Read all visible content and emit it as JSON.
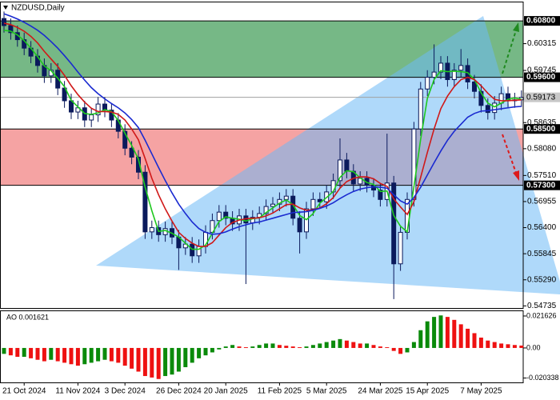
{
  "chart_data": [
    {
      "type": "candlestick",
      "title": "NZDUSD,Daily",
      "categories": [
        null,
        null,
        null,
        "21 Oct 2024",
        null,
        null,
        null,
        null,
        null,
        null,
        null,
        "11 Nov 2024",
        null,
        null,
        null,
        null,
        null,
        null,
        "3 Dec 2024",
        null,
        null,
        null,
        null,
        null,
        null,
        null,
        "26 Dec 2024",
        null,
        null,
        null,
        null,
        null,
        null,
        "20 Jan 2025",
        null,
        null,
        null,
        null,
        null,
        null,
        null,
        "11 Feb 2025",
        null,
        null,
        null,
        null,
        null,
        null,
        "5 Mar 2025",
        null,
        null,
        null,
        null,
        null,
        null,
        null,
        "24 Mar 2025",
        null,
        null,
        null,
        null,
        null,
        null,
        "15 Apr 2025",
        null,
        null,
        null,
        null,
        null,
        null,
        null,
        "7 May 2025",
        null,
        null,
        null,
        null,
        null,
        null
      ],
      "open": [
        0.6085,
        0.607,
        0.6055,
        0.604,
        0.6022,
        0.6005,
        0.5985,
        0.5963,
        0.5975,
        0.5937,
        0.591,
        0.5886,
        0.5895,
        0.5869,
        0.588,
        0.5903,
        0.589,
        0.5869,
        0.5845,
        0.5809,
        0.579,
        0.5758,
        0.5631,
        0.564,
        0.5625,
        0.5638,
        0.562,
        0.5597,
        0.5605,
        0.558,
        0.56,
        0.563,
        0.5655,
        0.5673,
        0.566,
        0.5648,
        0.5665,
        0.565,
        0.5662,
        0.567,
        0.5685,
        0.569,
        0.57,
        0.5707,
        0.566,
        0.5631,
        0.568,
        0.57,
        0.5695,
        0.5716,
        0.574,
        0.5784,
        0.576,
        0.5733,
        0.5745,
        0.573,
        0.572,
        0.57,
        0.5735,
        0.5563,
        0.563,
        0.57,
        0.585,
        0.5935,
        0.596,
        0.5971,
        0.599,
        0.5955,
        0.5975,
        0.5985,
        0.595,
        0.593,
        0.59,
        0.5885,
        0.5905,
        0.5925,
        0.591,
        0.5912
      ],
      "high": [
        0.61,
        0.6085,
        0.607,
        0.6055,
        0.6037,
        0.602,
        0.6,
        0.599,
        0.599,
        0.5952,
        0.5925,
        0.591,
        0.591,
        0.5895,
        0.5918,
        0.5918,
        0.5905,
        0.5884,
        0.586,
        0.5824,
        0.5805,
        0.5773,
        0.5655,
        0.5655,
        0.5653,
        0.5653,
        0.5635,
        0.562,
        0.562,
        0.5615,
        0.5645,
        0.567,
        0.5688,
        0.5688,
        0.5675,
        0.568,
        0.568,
        0.5677,
        0.5685,
        0.57,
        0.5705,
        0.5715,
        0.5722,
        0.5722,
        0.5675,
        0.5695,
        0.5715,
        0.5715,
        0.5731,
        0.5755,
        0.583,
        0.5799,
        0.5775,
        0.576,
        0.576,
        0.5745,
        0.5735,
        0.584,
        0.575,
        0.5645,
        0.5715,
        0.5865,
        0.595,
        0.5975,
        0.603,
        0.6005,
        0.6005,
        0.599,
        0.602,
        0.6,
        0.5965,
        0.5945,
        0.5915,
        0.592,
        0.594,
        0.594,
        0.5927,
        0.5932
      ],
      "low": [
        0.6055,
        0.604,
        0.6025,
        0.6007,
        0.599,
        0.597,
        0.5948,
        0.5948,
        0.5922,
        0.5895,
        0.5871,
        0.5871,
        0.5854,
        0.5854,
        0.5865,
        0.5875,
        0.5854,
        0.583,
        0.5794,
        0.5775,
        0.5743,
        0.5616,
        0.5616,
        0.561,
        0.561,
        0.5605,
        0.555,
        0.5582,
        0.5565,
        0.5565,
        0.5585,
        0.5615,
        0.564,
        0.5645,
        0.5633,
        0.5633,
        0.552,
        0.5635,
        0.5647,
        0.5655,
        0.567,
        0.5675,
        0.5685,
        0.5645,
        0.5585,
        0.5616,
        0.5665,
        0.568,
        0.568,
        0.5701,
        0.5725,
        0.5745,
        0.5718,
        0.5718,
        0.5715,
        0.5705,
        0.5685,
        0.5685,
        0.5488,
        0.5548,
        0.5615,
        0.5685,
        0.5835,
        0.592,
        0.5945,
        0.5956,
        0.594,
        0.594,
        0.596,
        0.5935,
        0.5915,
        0.5885,
        0.587,
        0.587,
        0.589,
        0.5895,
        0.5895,
        0.5897
      ],
      "close": [
        0.607,
        0.6055,
        0.604,
        0.6022,
        0.6005,
        0.5985,
        0.5963,
        0.5975,
        0.5937,
        0.591,
        0.5886,
        0.5895,
        0.5869,
        0.588,
        0.5903,
        0.589,
        0.5869,
        0.5845,
        0.5809,
        0.579,
        0.5758,
        0.5631,
        0.564,
        0.5625,
        0.5638,
        0.562,
        0.5597,
        0.5605,
        0.558,
        0.56,
        0.563,
        0.5655,
        0.5673,
        0.566,
        0.5648,
        0.5665,
        0.565,
        0.5662,
        0.567,
        0.5685,
        0.569,
        0.57,
        0.5707,
        0.566,
        0.5631,
        0.568,
        0.57,
        0.5695,
        0.5716,
        0.574,
        0.5784,
        0.576,
        0.5733,
        0.5745,
        0.573,
        0.572,
        0.57,
        0.5735,
        0.5563,
        0.563,
        0.57,
        0.585,
        0.5935,
        0.596,
        0.5971,
        0.599,
        0.5955,
        0.5975,
        0.5985,
        0.595,
        0.593,
        0.59,
        0.5885,
        0.5905,
        0.5925,
        0.591,
        0.5912,
        0.5917
      ],
      "up_color": "#ffffff",
      "down_color": "#0b1a5c",
      "candle_color": "#0b1a5c",
      "series": [
        {
          "color": "#1ec81e",
          "values": [
            0.606,
            0.6058,
            0.605,
            0.6038,
            0.6022,
            0.6004,
            0.5984,
            0.5974,
            0.5958,
            0.594,
            0.5911,
            0.5897,
            0.5883,
            0.5881,
            0.5884,
            0.5891,
            0.5887,
            0.5868,
            0.5841,
            0.5815,
            0.5786,
            0.5726,
            0.5676,
            0.5632,
            0.5634,
            0.5628,
            0.562,
            0.5607,
            0.5594,
            0.5594,
            0.5603,
            0.5628,
            0.5653,
            0.5663,
            0.566,
            0.5658,
            0.5654,
            0.5659,
            0.5661,
            0.5672,
            0.5682,
            0.5692,
            0.5699,
            0.5689,
            0.5666,
            0.5657,
            0.567,
            0.5692,
            0.5704,
            0.5717,
            0.5747,
            0.5761,
            0.5759,
            0.5746,
            0.5736,
            0.5732,
            0.5717,
            0.5718,
            0.5666,
            0.5643,
            0.5631,
            0.5727,
            0.5828,
            0.5915,
            0.5955,
            0.5974,
            0.5972,
            0.5973,
            0.5972,
            0.597,
            0.5955,
            0.5927,
            0.5905,
            0.5897,
            0.5905,
            0.5913,
            0.5916,
            0.5913
          ]
        },
        {
          "color": "#d01818",
          "values": [
            0.6075,
            0.6072,
            0.6066,
            0.6058,
            0.6047,
            0.6033,
            0.6015,
            0.5999,
            0.5983,
            0.5964,
            0.5942,
            0.5923,
            0.5907,
            0.5894,
            0.5887,
            0.5887,
            0.5886,
            0.5881,
            0.5869,
            0.585,
            0.5827,
            0.5787,
            0.5745,
            0.571,
            0.568,
            0.5654,
            0.563,
            0.5617,
            0.5607,
            0.56,
            0.56,
            0.5608,
            0.5624,
            0.564,
            0.5651,
            0.5656,
            0.5659,
            0.566,
            0.5661,
            0.5665,
            0.5671,
            0.568,
            0.5689,
            0.569,
            0.5682,
            0.5677,
            0.5678,
            0.5682,
            0.5691,
            0.5704,
            0.5724,
            0.5738,
            0.5745,
            0.5748,
            0.5748,
            0.5744,
            0.5734,
            0.5728,
            0.5701,
            0.5684,
            0.5668,
            0.5695,
            0.5747,
            0.58,
            0.585,
            0.5893,
            0.592,
            0.594,
            0.5955,
            0.596,
            0.5955,
            0.5942,
            0.5926,
            0.5913,
            0.591,
            0.591,
            0.5911,
            0.5912
          ]
        },
        {
          "color": "#1a2ad0",
          "values": [
            0.6095,
            0.609,
            0.6084,
            0.6077,
            0.6069,
            0.606,
            0.6049,
            0.6036,
            0.6022,
            0.6006,
            0.5989,
            0.5971,
            0.5954,
            0.5938,
            0.5925,
            0.5914,
            0.5904,
            0.5895,
            0.5884,
            0.587,
            0.5853,
            0.5826,
            0.5797,
            0.5768,
            0.574,
            0.5714,
            0.569,
            0.567,
            0.5652,
            0.5638,
            0.563,
            0.5626,
            0.5627,
            0.5631,
            0.5637,
            0.5642,
            0.5646,
            0.565,
            0.5652,
            0.5656,
            0.566,
            0.5664,
            0.5668,
            0.5672,
            0.5673,
            0.5674,
            0.5677,
            0.5681,
            0.5686,
            0.5693,
            0.5702,
            0.571,
            0.5717,
            0.5722,
            0.5725,
            0.5727,
            0.5726,
            0.5724,
            0.571,
            0.5697,
            0.569,
            0.5704,
            0.5726,
            0.5752,
            0.5778,
            0.5803,
            0.5826,
            0.5845,
            0.586,
            0.5875,
            0.5883,
            0.5888,
            0.5889,
            0.5891,
            0.5893,
            0.5895,
            0.5897,
            0.5898
          ]
        }
      ],
      "ylim": [
        0.5469,
        0.6121
      ],
      "yticks": [
        0.60315,
        0.59745,
        0.58635,
        {
          "value": 0.5808,
          "label": "0.58080"
        },
        {
          "value": 0.5751,
          "label": "0.57510"
        },
        0.56955,
        {
          "value": 0.564,
          "label": "0.56400"
        },
        0.55845,
        {
          "value": 0.5529,
          "label": "0.55290"
        },
        0.54735
      ],
      "bands": [
        {
          "from": 0.596,
          "to": 0.608,
          "color": "#76b886"
        },
        {
          "from": 0.573,
          "to": 0.585,
          "color": "#f5a3a3"
        }
      ],
      "levels": [
        {
          "value": 0.608,
          "label": "0.60800"
        },
        {
          "value": 0.596,
          "label": "0.59600"
        },
        {
          "value": 0.585,
          "label": "0.58500"
        },
        {
          "value": 0.573,
          "label": "0.57300"
        }
      ],
      "current_price": {
        "value": 0.59173,
        "label": "0.59173"
      }
    },
    {
      "type": "bar",
      "title": "AO 0.001621",
      "values": [
        -0.004,
        -0.005,
        -0.006,
        -0.006,
        -0.007,
        -0.008,
        -0.009,
        -0.008,
        -0.009,
        -0.01,
        -0.011,
        -0.012,
        -0.011,
        -0.01,
        -0.009,
        -0.008,
        -0.009,
        -0.01,
        -0.012,
        -0.014,
        -0.016,
        -0.019,
        -0.02,
        -0.021,
        -0.019,
        -0.018,
        -0.016,
        -0.013,
        -0.01,
        -0.007,
        -0.005,
        -0.003,
        -0.001,
        0.001,
        0.002,
        0.001,
        0.0005,
        0.001,
        0.002,
        0.003,
        0.003,
        0.002,
        0.0015,
        0.001,
        0.0005,
        0.001,
        0.002,
        0.003,
        0.004,
        0.005,
        0.006,
        0.005,
        0.004,
        0.003,
        0.003,
        0.002,
        0.001,
        0.0005,
        -0.002,
        -0.004,
        -0.003,
        0.004,
        0.012,
        0.018,
        0.021,
        0.022,
        0.021,
        0.019,
        0.016,
        0.013,
        0.01,
        0.007,
        0.005,
        0.004,
        0.003,
        0.0025,
        0.002,
        0.001621
      ],
      "up_color": "#0a8a0a",
      "down_color": "#ee1111",
      "ylim": [
        -0.0233,
        0.0254
      ],
      "yticks": [
        0.021626,
        {
          "value": 0,
          "label": "0.00"
        },
        -0.020338
      ]
    }
  ]
}
